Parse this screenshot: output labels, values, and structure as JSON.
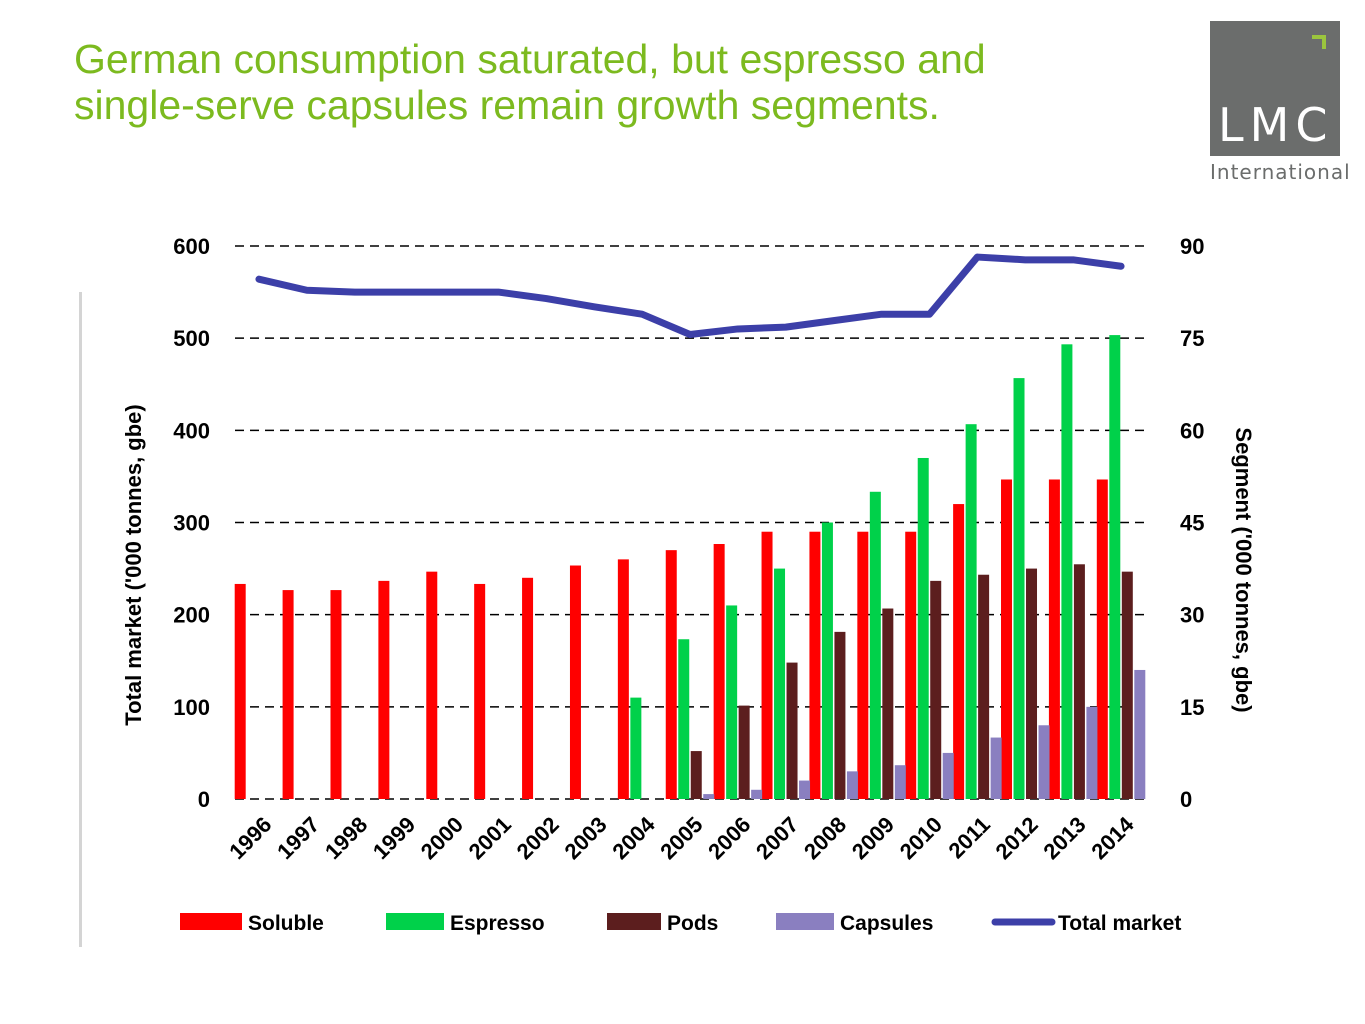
{
  "header": {
    "title_line1": "German consumption saturated, but espresso and",
    "title_line2": "single-serve capsules remain growth segments."
  },
  "logo": {
    "text": "LMC",
    "subtitle": "International"
  },
  "chart_data": {
    "type": "bar",
    "categories": [
      "1996",
      "1997",
      "1998",
      "1999",
      "2000",
      "2001",
      "2002",
      "2003",
      "2004",
      "2005",
      "2006",
      "2007",
      "2008",
      "2009",
      "2010",
      "2011",
      "2012",
      "2013",
      "2014"
    ],
    "ylabel_left": "Total market ('000 tonnes, gbe)",
    "ylabel_right": "Segment ('000 tonnes, gbe)",
    "ylim_left": [
      0,
      600
    ],
    "ylim_right": [
      0,
      90
    ],
    "yticks_left": [
      "0",
      "100",
      "200",
      "300",
      "400",
      "500",
      "600"
    ],
    "yticks_right": [
      "0",
      "15",
      "30",
      "45",
      "60",
      "75",
      "90"
    ],
    "grid": "dashed horizontal",
    "legend_position": "bottom",
    "series": [
      {
        "name": "Soluble",
        "type": "bar",
        "axis": "right",
        "color": "#ff0000",
        "values": [
          35,
          34,
          34,
          35.5,
          37,
          35,
          36,
          38,
          39,
          40.5,
          41.5,
          43.5,
          43.5,
          43.5,
          43.5,
          48,
          52,
          52,
          52
        ]
      },
      {
        "name": "Espresso",
        "type": "bar",
        "axis": "right",
        "color": "#00d14a",
        "values": [
          0,
          0,
          0,
          0,
          0,
          0,
          0,
          0,
          16.5,
          26,
          31.5,
          37.5,
          45,
          50,
          55.5,
          61,
          68.5,
          74,
          75.5
        ]
      },
      {
        "name": "Pods",
        "type": "bar",
        "axis": "right",
        "color": "#5c1e1e",
        "values": [
          0,
          0,
          0,
          0,
          0,
          0,
          0,
          0,
          0,
          7.8,
          15.2,
          22.2,
          27.2,
          31,
          35.5,
          36.5,
          37.5,
          38.2,
          37
        ]
      },
      {
        "name": "Capsules",
        "type": "bar",
        "axis": "right",
        "color": "#8a7fc0",
        "values": [
          0,
          0,
          0,
          0,
          0,
          0,
          0,
          0,
          0,
          0.8,
          1.5,
          3,
          4.5,
          5.5,
          7.5,
          10,
          12,
          15,
          21
        ]
      },
      {
        "name": "Total market",
        "type": "line",
        "axis": "left",
        "color": "#3c3fa8",
        "values": [
          564,
          552,
          550,
          550,
          550,
          550,
          543,
          534,
          526,
          504,
          510,
          512,
          519,
          526,
          526,
          588,
          585,
          585,
          578
        ]
      }
    ]
  }
}
